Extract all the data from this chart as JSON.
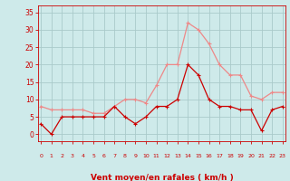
{
  "hours": [
    0,
    1,
    2,
    3,
    4,
    5,
    6,
    7,
    8,
    9,
    10,
    11,
    12,
    13,
    14,
    15,
    16,
    17,
    18,
    19,
    20,
    21,
    22,
    23
  ],
  "wind_avg": [
    3,
    0,
    5,
    5,
    5,
    5,
    5,
    8,
    5,
    3,
    5,
    8,
    8,
    10,
    20,
    17,
    10,
    8,
    8,
    7,
    7,
    1,
    7,
    8
  ],
  "wind_gust": [
    8,
    7,
    7,
    7,
    7,
    6,
    6,
    8,
    10,
    10,
    9,
    14,
    20,
    20,
    32,
    30,
    26,
    20,
    17,
    17,
    11,
    10,
    12,
    12
  ],
  "bg_color": "#ceeaea",
  "grid_color": "#aacaca",
  "avg_color": "#cc0000",
  "gust_color": "#ee8888",
  "xlabel": "Vent moyen/en rafales ( km/h )",
  "xlabel_color": "#cc0000",
  "tick_color": "#cc0000",
  "yticks": [
    0,
    5,
    10,
    15,
    20,
    25,
    30,
    35
  ],
  "ylim": [
    -2,
    37
  ],
  "xlim": [
    -0.3,
    23.3
  ]
}
